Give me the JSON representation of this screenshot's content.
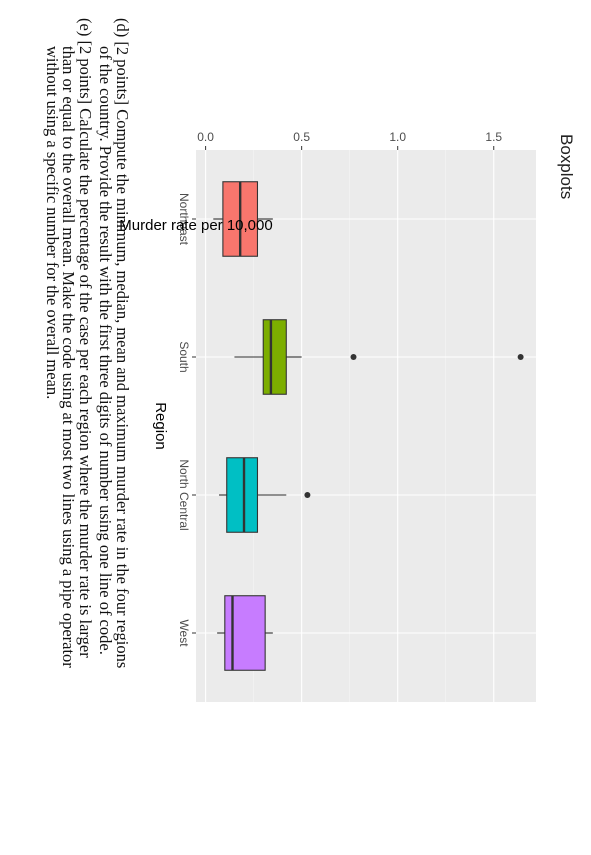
{
  "chart_data": {
    "type": "box",
    "title": "Boxplots",
    "xlabel": "Region",
    "ylabel": "Murder rate per 10,000",
    "ylim": [
      -0.05,
      1.72
    ],
    "y_ticks": [
      {
        "value": 0.0,
        "label": "0.0"
      },
      {
        "value": 0.5,
        "label": "0.5"
      },
      {
        "value": 1.0,
        "label": "1.0"
      },
      {
        "value": 1.5,
        "label": "1.5"
      }
    ],
    "grid": true,
    "categories": [
      "Northeast",
      "South",
      "North Central",
      "West"
    ],
    "boxes": [
      {
        "category": "Northeast",
        "color": "#F8766D",
        "whisker_low": 0.04,
        "q1": 0.09,
        "median": 0.18,
        "q3": 0.27,
        "whisker_high": 0.35,
        "outliers": []
      },
      {
        "category": "South",
        "color": "#7CAE00",
        "whisker_low": 0.15,
        "q1": 0.3,
        "median": 0.34,
        "q3": 0.42,
        "whisker_high": 0.5,
        "outliers": [
          0.77,
          1.64
        ]
      },
      {
        "category": "North Central",
        "color": "#00BFC4",
        "whisker_low": 0.07,
        "q1": 0.11,
        "median": 0.2,
        "q3": 0.27,
        "whisker_high": 0.42,
        "outliers": [
          0.53
        ]
      },
      {
        "category": "West",
        "color": "#C77CFF",
        "whisker_low": 0.06,
        "q1": 0.1,
        "median": 0.14,
        "q3": 0.31,
        "whisker_high": 0.35,
        "outliers": []
      }
    ]
  },
  "questions": [
    {
      "tag": "(d)",
      "line1": "[2 points] Compute the minimum, median, mean and maximum murder rate in the four regions",
      "line2": "of the country. Provide the result with the first three digits of number using one line of code."
    },
    {
      "tag": "(e)",
      "line1": "[2 points] Calculate the percentage of the case per each region where the murder rate is larger",
      "line2": "than or equal to the overall mean. Make the code using at most two lines using a pipe operator",
      "line3": "without using a specific number for the overall mean."
    }
  ]
}
